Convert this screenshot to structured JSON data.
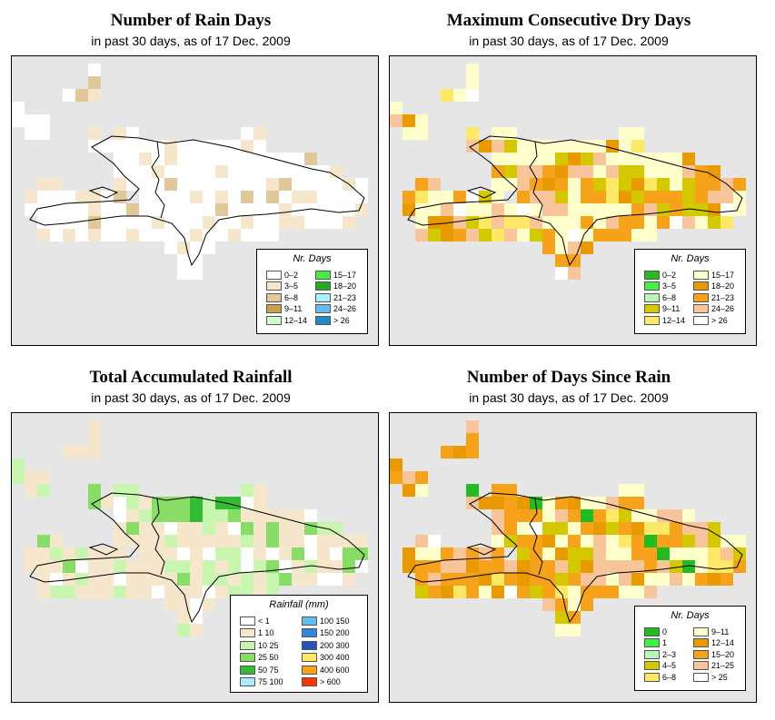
{
  "panels": [
    {
      "title": "Number of Rain Days",
      "subtitle": "in past 30 days, as of  17 Dec. 2009",
      "legend": {
        "title": "Nr. Days",
        "items": [
          {
            "label": "0–2",
            "color": "#ffffff"
          },
          {
            "label": "3–5",
            "color": "#f5e6cc"
          },
          {
            "label": "6–8",
            "color": "#e0c89a"
          },
          {
            "label": "9–11",
            "color": "#c8a050"
          },
          {
            "label": "12–14",
            "color": "#ccffcc"
          },
          {
            "label": "15–17",
            "color": "#44ee44"
          },
          {
            "label": "18–20",
            "color": "#22aa22"
          },
          {
            "label": "21–23",
            "color": "#aaeeff"
          },
          {
            "label": "24–26",
            "color": "#66bbee"
          },
          {
            "label": "> 26",
            "color": "#2288cc"
          }
        ]
      }
    },
    {
      "title": "Maximum Consecutive Dry Days",
      "subtitle": "in past 30 days, as of  17 Dec. 2009",
      "legend": {
        "title": "Nr. Days",
        "items": [
          {
            "label": "0–2",
            "color": "#22bb22"
          },
          {
            "label": "3–5",
            "color": "#44ee44"
          },
          {
            "label": "6–8",
            "color": "#bbf5bb"
          },
          {
            "label": "9–11",
            "color": "#d4c800"
          },
          {
            "label": "12–14",
            "color": "#ffe866"
          },
          {
            "label": "15–17",
            "color": "#ffffcc"
          },
          {
            "label": "18–20",
            "color": "#e89a00"
          },
          {
            "label": "21–23",
            "color": "#f7a21b"
          },
          {
            "label": "24–26",
            "color": "#f8c49a"
          },
          {
            "label": "> 26",
            "color": "#ffffff"
          }
        ]
      }
    },
    {
      "title": "Total Accumulated Rainfall",
      "subtitle": "in past 30 days, as of  17 Dec. 2009",
      "legend": {
        "title": "Rainfall (mm)",
        "items": [
          {
            "label": "< 1",
            "color": "#ffffff"
          },
          {
            "label": "1     10",
            "color": "#f5e6cc"
          },
          {
            "label": "10     25",
            "color": "#c8f5b0"
          },
          {
            "label": "25     50",
            "color": "#88dd66"
          },
          {
            "label": "50     75",
            "color": "#33bb33"
          },
          {
            "label": "75   100",
            "color": "#aaeeff"
          },
          {
            "label": "100   150",
            "color": "#66bbee"
          },
          {
            "label": "150   200",
            "color": "#3388dd"
          },
          {
            "label": "200   300",
            "color": "#2255bb"
          },
          {
            "label": "300   400",
            "color": "#ffe866"
          },
          {
            "label": "400   600",
            "color": "#f7a21b"
          },
          {
            "label": "> 600",
            "color": "#ff3300"
          }
        ]
      }
    },
    {
      "title": "Number of Days Since Rain",
      "subtitle": "in past 30 days, as of  17 Dec. 2009",
      "legend": {
        "title": "Nr. Days",
        "items": [
          {
            "label": "0",
            "color": "#22bb22"
          },
          {
            "label": "1",
            "color": "#44ee44"
          },
          {
            "label": "2–3",
            "color": "#bbf5bb"
          },
          {
            "label": "4–5",
            "color": "#d4c800"
          },
          {
            "label": "6–8",
            "color": "#ffe866"
          },
          {
            "label": "9–11",
            "color": "#ffffcc"
          },
          {
            "label": "12–14",
            "color": "#e89a00"
          },
          {
            "label": "15–20",
            "color": "#f7a21b"
          },
          {
            "label": "21–25",
            "color": "#f8c49a"
          },
          {
            "label": "> 25",
            "color": "#ffffff"
          }
        ]
      }
    }
  ],
  "colors": {
    "map_background": "#e6e6e6",
    "coastline": "#000000"
  }
}
